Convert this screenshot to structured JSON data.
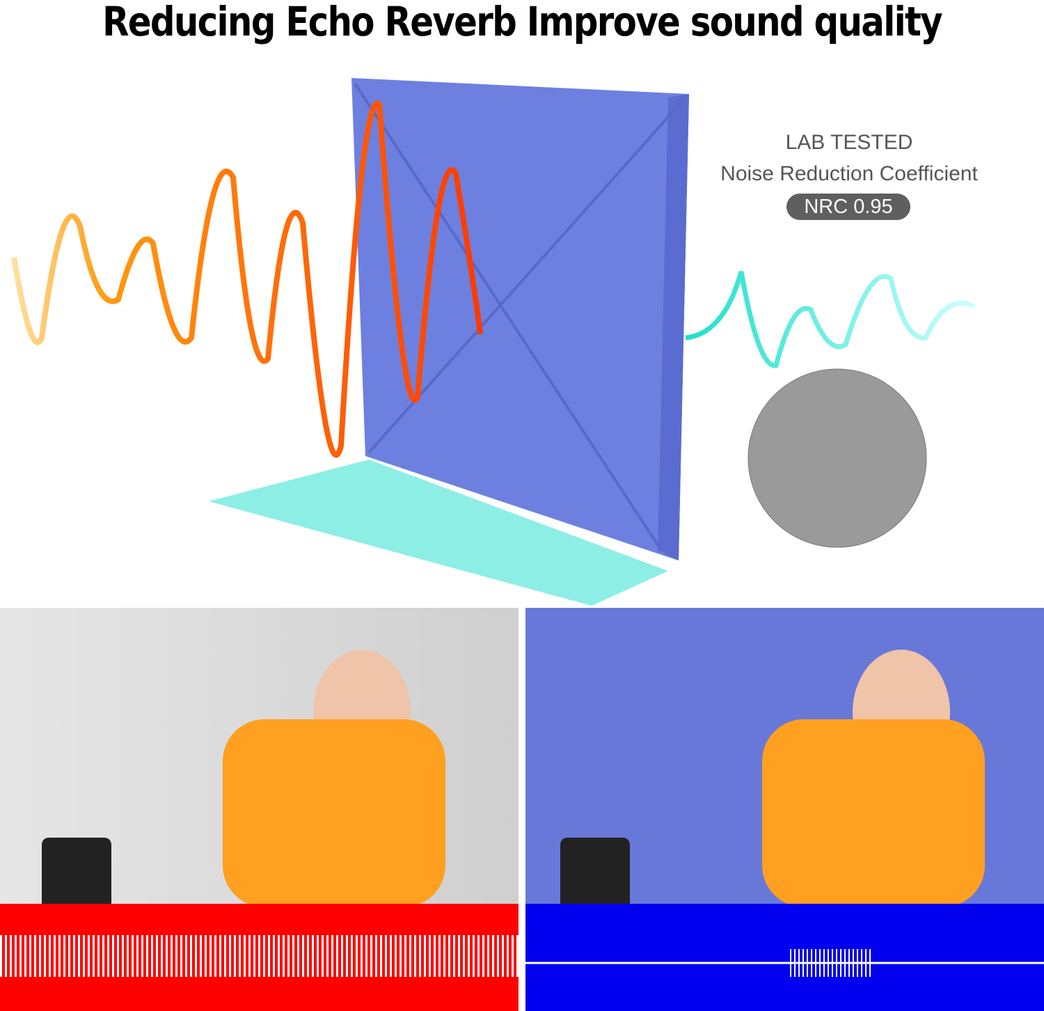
{
  "title": "Reducing Echo Reverb Improve sound quality",
  "lab": {
    "line1": "LAB TESTED",
    "line2": "Noise Reduction Coefficient",
    "badge": "NRC 0.95"
  },
  "colors": {
    "panel": "#6878d8",
    "wave_in": "#ff6a00",
    "wave_out": "#19d3e0",
    "bad_wave_bg": "#ff0000",
    "good_wave_bg": "#0000ee"
  }
}
